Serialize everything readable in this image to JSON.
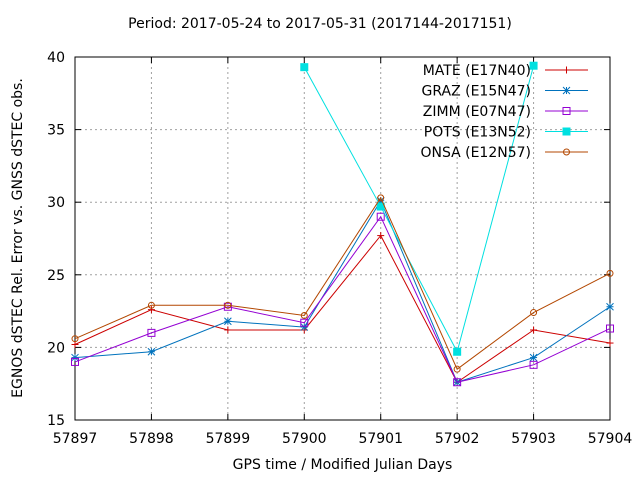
{
  "chart_data": {
    "type": "line",
    "title": "Period: 2017-05-24 to 2017-05-31 (2017144-2017151)",
    "xlabel": "GPS time / Modified Julian Days",
    "ylabel": "EGNOS dSTEC Rel. Error vs. GNSS dSTEC obs.",
    "xlim": [
      57897,
      57904
    ],
    "ylim": [
      15,
      40
    ],
    "xticks": [
      57897,
      57898,
      57899,
      57900,
      57901,
      57902,
      57903,
      57904
    ],
    "yticks": [
      15,
      20,
      25,
      30,
      35,
      40
    ],
    "grid": true,
    "legend_position": "top-right",
    "series": [
      {
        "name": "MATE (E17N40)",
        "color": "#cc0000",
        "marker": "plus",
        "x": [
          57897,
          57898,
          57899,
          57900,
          57901,
          57902,
          57903,
          57904
        ],
        "y": [
          20.2,
          22.6,
          21.2,
          21.2,
          27.7,
          17.6,
          21.2,
          20.3
        ]
      },
      {
        "name": "GRAZ (E15N47)",
        "color": "#0072bd",
        "marker": "star",
        "x": [
          57897,
          57898,
          57899,
          57900,
          57901,
          57902,
          57903,
          57904
        ],
        "y": [
          19.3,
          19.7,
          21.8,
          21.4,
          30.1,
          17.6,
          19.3,
          22.8
        ]
      },
      {
        "name": "ZIMM (E07N47)",
        "color": "#9400d3",
        "marker": "square-open",
        "x": [
          57897,
          57898,
          57899,
          57900,
          57901,
          57902,
          57903,
          57904
        ],
        "y": [
          19.0,
          21.0,
          22.8,
          21.7,
          29.0,
          17.6,
          18.8,
          21.3
        ]
      },
      {
        "name": "POTS (E13N52)",
        "color": "#00e0e0",
        "marker": "square-filled",
        "x": [
          57900,
          57901,
          57902,
          57903
        ],
        "y": [
          39.3,
          29.7,
          19.7,
          39.4
        ]
      },
      {
        "name": "ONSA (E12N57)",
        "color": "#b34700",
        "marker": "circle-open",
        "x": [
          57897,
          57898,
          57899,
          57900,
          57901,
          57902,
          57903,
          57904
        ],
        "y": [
          20.6,
          22.9,
          22.9,
          22.2,
          30.3,
          18.5,
          22.4,
          25.1
        ]
      }
    ]
  }
}
